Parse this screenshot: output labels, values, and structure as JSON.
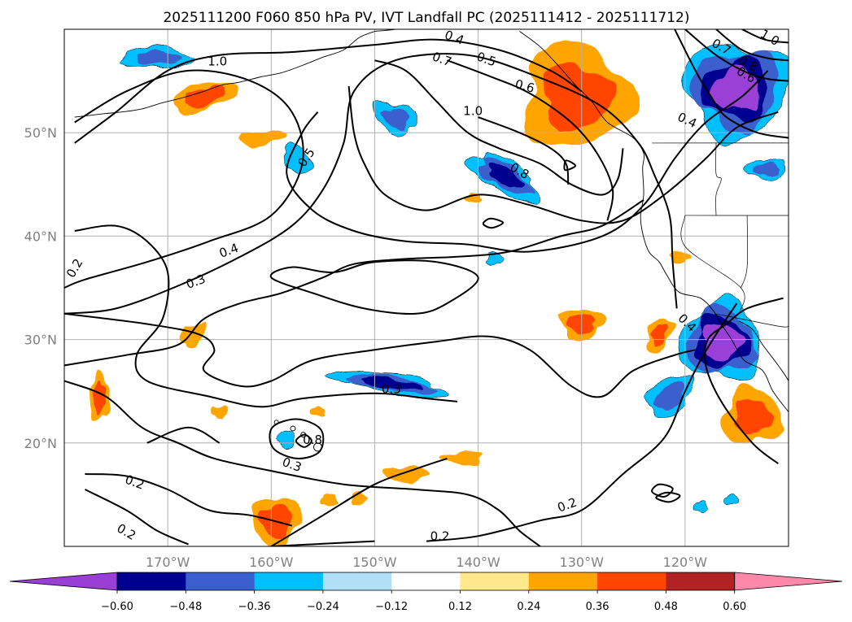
{
  "chart_data": {
    "type": "heatmap",
    "title": "2025111200 F060 850 hPa PV, IVT Landfall PC (2025111412 - 2025111712)",
    "map_extent": {
      "lon_min": -180,
      "lon_max": -110,
      "lat_min": 10,
      "lat_max": 60
    },
    "lat_ticks": [
      {
        "value": 20,
        "label": "20°N"
      },
      {
        "value": 30,
        "label": "30°N"
      },
      {
        "value": 40,
        "label": "40°N"
      },
      {
        "value": 50,
        "label": "50°N"
      }
    ],
    "lon_ticks": [
      {
        "value": -170,
        "label": "170°W"
      },
      {
        "value": -160,
        "label": "160°W"
      },
      {
        "value": -150,
        "label": "150°W"
      },
      {
        "value": -140,
        "label": "140°W"
      },
      {
        "value": -130,
        "label": "130°W"
      },
      {
        "value": -120,
        "label": "120°W"
      }
    ],
    "gridlines": true,
    "colorbar": {
      "orientation": "horizontal",
      "extend": "both",
      "levels": [
        -0.6,
        -0.48,
        -0.36,
        -0.24,
        -0.12,
        0.12,
        0.24,
        0.36,
        0.48,
        0.6
      ],
      "tick_labels": [
        "−0.60",
        "−0.48",
        "−0.36",
        "−0.24",
        "−0.12",
        "0.12",
        "0.24",
        "0.36",
        "0.48",
        "0.60"
      ],
      "colors": [
        "#9a3fd6",
        "#000090",
        "#3a5fcd",
        "#00bfff",
        "#b0e0f8",
        "#ffffff",
        "#ffe98a",
        "#ffa500",
        "#ff4500",
        "#b22222",
        "#ff88aa"
      ]
    },
    "pv_contour_labels": [
      {
        "text": "1.0",
        "lon": -165.2,
        "lat": 56.9,
        "rot": 0
      },
      {
        "text": "0.4",
        "lon": -142.3,
        "lat": 59.2,
        "rot": 20
      },
      {
        "text": "0.5",
        "lon": -139.2,
        "lat": 57.1,
        "rot": 20
      },
      {
        "text": "0.7",
        "lon": -143.5,
        "lat": 57.1,
        "rot": 20
      },
      {
        "text": "0.6",
        "lon": -135.5,
        "lat": 54.5,
        "rot": 15
      },
      {
        "text": "1.0",
        "lon": -140.5,
        "lat": 52.1,
        "rot": 0
      },
      {
        "text": "0.5",
        "lon": -156.6,
        "lat": 47.6,
        "rot": -55
      },
      {
        "text": "0.8",
        "lon": -136.0,
        "lat": 46.3,
        "rot": 30
      },
      {
        "text": "0.4",
        "lon": -119.8,
        "lat": 51.2,
        "rot": 25
      },
      {
        "text": "0.7",
        "lon": -116.5,
        "lat": 58.3,
        "rot": 30
      },
      {
        "text": "0.8",
        "lon": -113.9,
        "lat": 56.7,
        "rot": 30
      },
      {
        "text": "0.6",
        "lon": -114.1,
        "lat": 55.6,
        "rot": 30
      },
      {
        "text": "1.0",
        "lon": -111.8,
        "lat": 59.2,
        "rot": 30
      },
      {
        "text": "0.4",
        "lon": -164.1,
        "lat": 38.6,
        "rot": -20
      },
      {
        "text": "0.3",
        "lon": -167.3,
        "lat": 35.6,
        "rot": -20
      },
      {
        "text": "0.2",
        "lon": -179.0,
        "lat": 36.9,
        "rot": -60
      },
      {
        "text": "0.4",
        "lon": -119.8,
        "lat": 31.6,
        "rot": 45
      },
      {
        "text": "0.3",
        "lon": -148.4,
        "lat": 25.2,
        "rot": 0
      },
      {
        "text": "0.8",
        "lon": -156.0,
        "lat": 20.3,
        "rot": 0
      },
      {
        "text": "0.3",
        "lon": -158.0,
        "lat": 17.9,
        "rot": 20
      },
      {
        "text": "0.2",
        "lon": -173.2,
        "lat": 16.2,
        "rot": 20
      },
      {
        "text": "0.2",
        "lon": -174.0,
        "lat": 11.4,
        "rot": 30
      },
      {
        "text": "0.2",
        "lon": -131.4,
        "lat": 14.0,
        "rot": -20
      },
      {
        "text": "0.2",
        "lon": -143.7,
        "lat": 11.0,
        "rot": 0
      }
    ]
  }
}
